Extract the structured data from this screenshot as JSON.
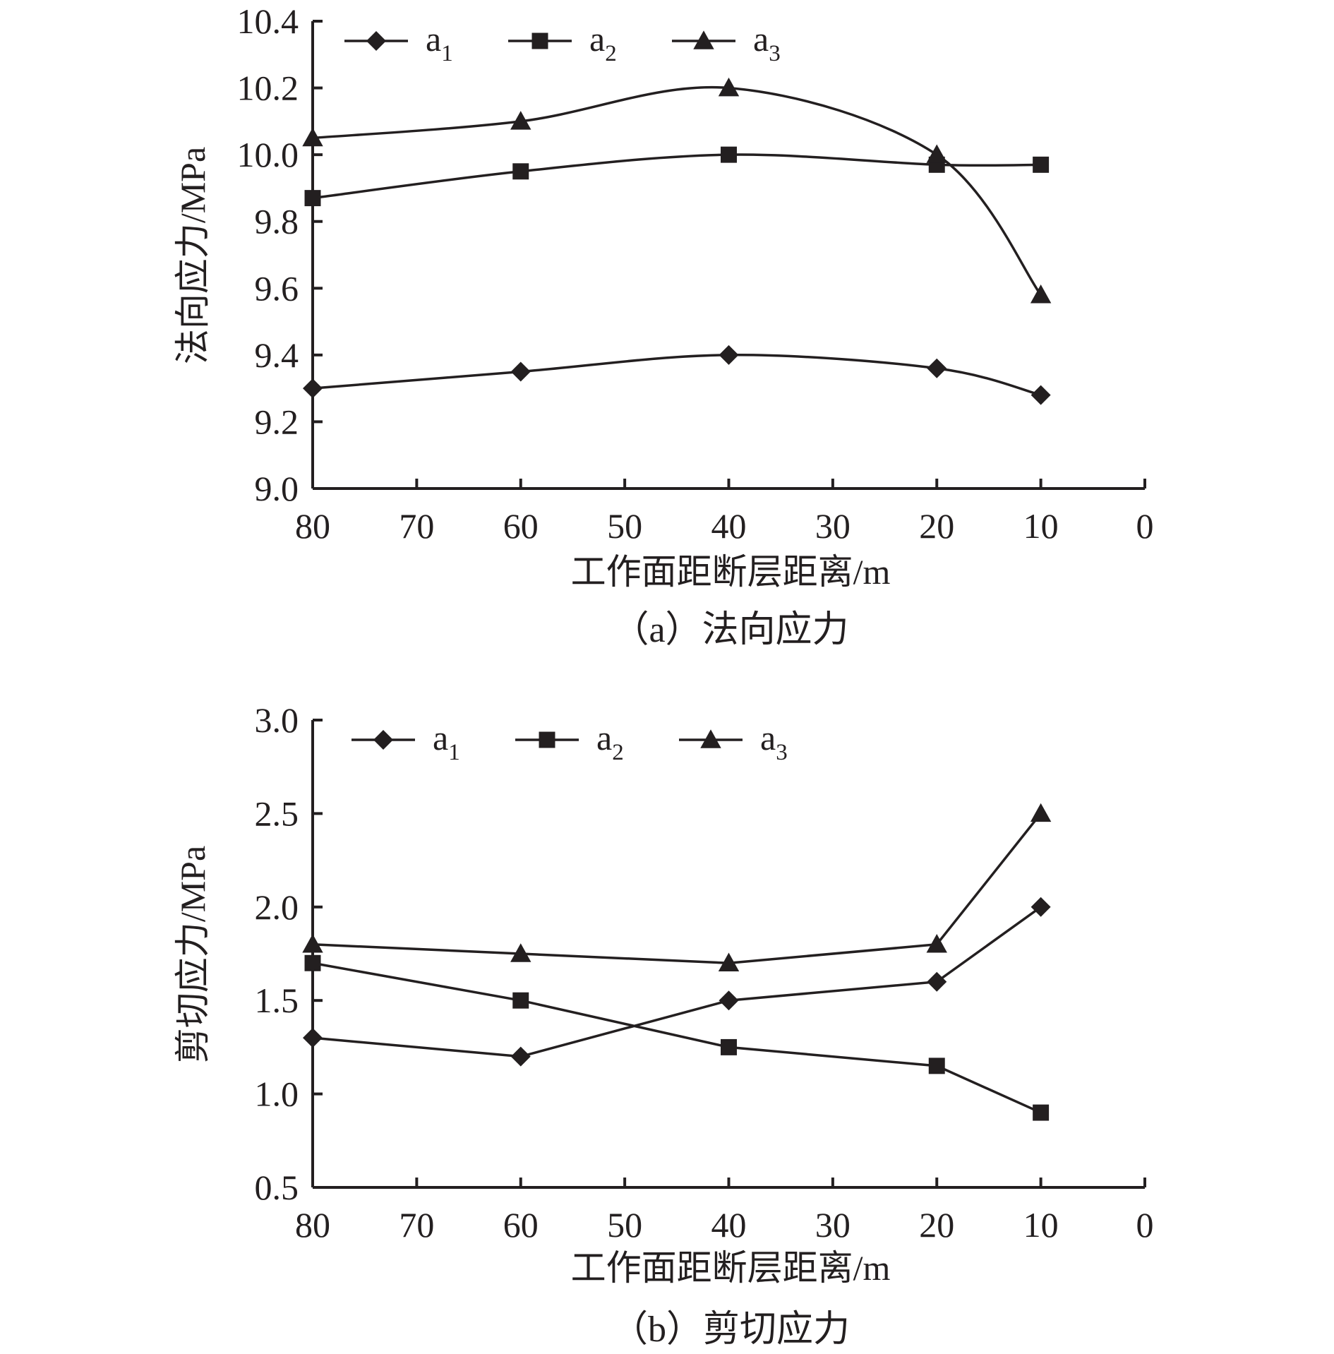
{
  "chart_data": [
    {
      "type": "line",
      "smooth": true,
      "caption": "（a）法向应力",
      "xlabel": "工作面距断层距离/m",
      "ylabel": "法向应力/MPa",
      "xlim": [
        80,
        0
      ],
      "ylim": [
        9.0,
        10.4
      ],
      "x_ticks": [
        "80",
        "70",
        "60",
        "50",
        "40",
        "30",
        "20",
        "10",
        "0"
      ],
      "y_ticks": [
        "9.0",
        "9.2",
        "9.4",
        "9.6",
        "9.8",
        "10.0",
        "10.2",
        "10.4"
      ],
      "grid": false,
      "legend_position": "top",
      "x": [
        80,
        60,
        40,
        20,
        10
      ],
      "series": [
        {
          "name": "a",
          "sub": "1",
          "marker": "diamond",
          "values": [
            9.3,
            9.35,
            9.4,
            9.36,
            9.28
          ]
        },
        {
          "name": "a",
          "sub": "2",
          "marker": "square",
          "values": [
            9.87,
            9.95,
            10.0,
            9.97,
            9.97
          ]
        },
        {
          "name": "a",
          "sub": "3",
          "marker": "triangle",
          "values": [
            10.05,
            10.1,
            10.2,
            10.0,
            9.58
          ]
        }
      ]
    },
    {
      "type": "line",
      "smooth": false,
      "caption": "（b）剪切应力",
      "xlabel": "工作面距断层距离/m",
      "ylabel": "剪切应力/MPa",
      "xlim": [
        80,
        0
      ],
      "ylim": [
        0.5,
        3.0
      ],
      "x_ticks": [
        "80",
        "70",
        "60",
        "50",
        "40",
        "30",
        "20",
        "10",
        "0"
      ],
      "y_ticks": [
        "0.5",
        "1.0",
        "1.5",
        "2.0",
        "2.5",
        "3.0"
      ],
      "grid": false,
      "legend_position": "top",
      "x": [
        80,
        60,
        40,
        20,
        10
      ],
      "series": [
        {
          "name": "a",
          "sub": "1",
          "marker": "diamond",
          "values": [
            1.3,
            1.2,
            1.5,
            1.6,
            2.0
          ]
        },
        {
          "name": "a",
          "sub": "2",
          "marker": "square",
          "values": [
            1.7,
            1.5,
            1.25,
            1.15,
            0.9
          ]
        },
        {
          "name": "a",
          "sub": "3",
          "marker": "triangle",
          "values": [
            1.8,
            1.75,
            1.7,
            1.8,
            2.5
          ]
        }
      ]
    }
  ],
  "colors": {
    "ink": "#231f20",
    "background": "#ffffff"
  }
}
